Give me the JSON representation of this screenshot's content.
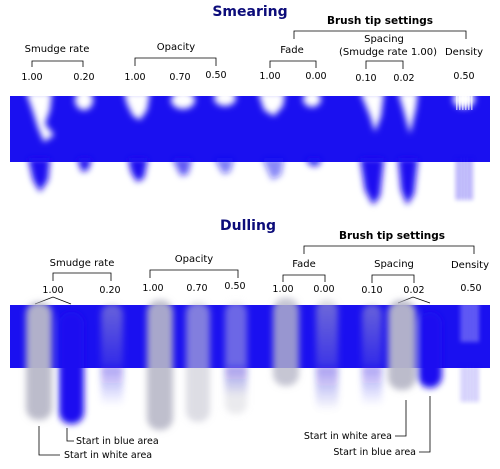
{
  "colors": {
    "blue": "#1a10f0",
    "gray": "#b8b8c4",
    "title": "#0c0c7a"
  },
  "smearing": {
    "title": "Smearing",
    "brush_tip_title": "Brush tip settings",
    "groups": {
      "smudge_rate": {
        "label": "Smudge rate",
        "values": [
          "1.00",
          "0.20"
        ]
      },
      "opacity": {
        "label": "Opacity",
        "values": [
          "1.00",
          "0.70",
          "0.50"
        ]
      },
      "fade": {
        "label": "Fade",
        "values": [
          "1.00",
          "0.00"
        ]
      },
      "spacing": {
        "label": "Spacing",
        "label_line2": "(Smudge rate 1.00)",
        "values": [
          "0.10",
          "0.02"
        ]
      },
      "density": {
        "label": "Density",
        "values": [
          "0.50"
        ]
      }
    }
  },
  "dulling": {
    "title": "Dulling",
    "brush_tip_title": "Brush tip settings",
    "groups": {
      "smudge_rate": {
        "label": "Smudge rate",
        "values": [
          "1.00",
          "0.20"
        ]
      },
      "opacity": {
        "label": "Opacity",
        "values": [
          "1.00",
          "0.70",
          "0.50"
        ]
      },
      "fade": {
        "label": "Fade",
        "values": [
          "1.00",
          "0.00"
        ]
      },
      "spacing": {
        "label": "Spacing",
        "values": [
          "0.10",
          "0.02"
        ]
      },
      "density": {
        "label": "Density",
        "values": [
          "0.50"
        ]
      }
    },
    "annotations": {
      "start_white": "Start in white area",
      "start_blue": "Start in blue area"
    }
  }
}
